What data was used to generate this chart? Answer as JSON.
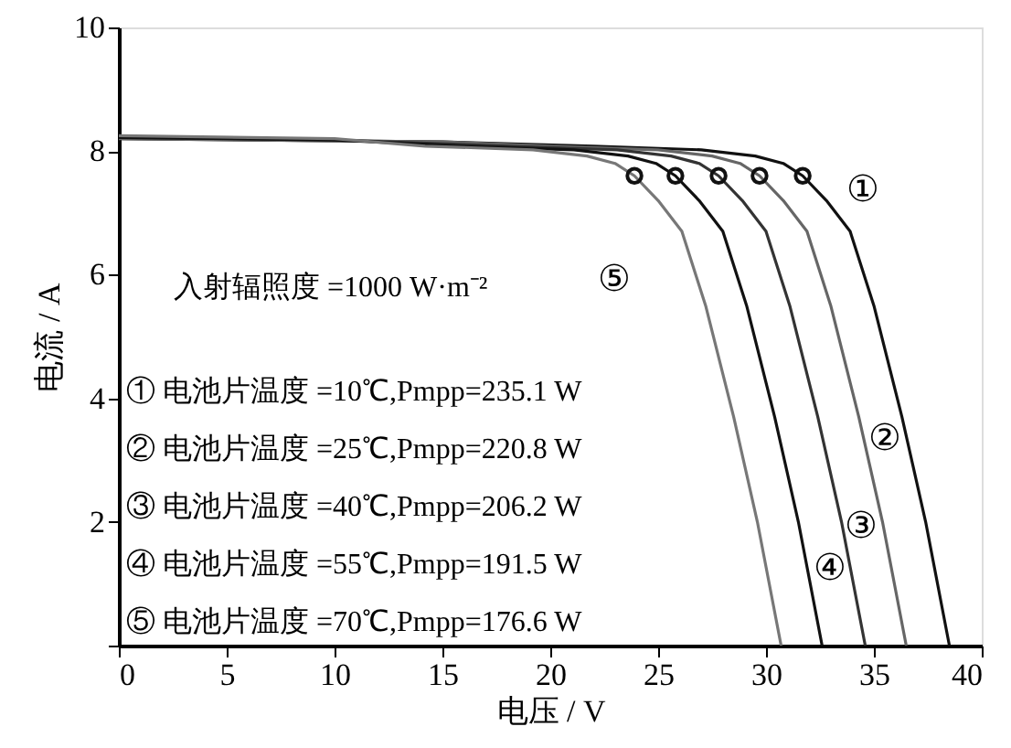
{
  "chart_data": {
    "type": "line",
    "xlabel": "电压 / V",
    "ylabel": "电流 / A",
    "xlim": [
      0,
      40
    ],
    "xticks": [
      0,
      5,
      10,
      15,
      20,
      25,
      30,
      35,
      40
    ],
    "ylim": [
      0,
      10
    ],
    "yticks": [
      {
        "value": 0,
        "label": null
      },
      2,
      4,
      6,
      8,
      10
    ],
    "grid": false,
    "series": [
      {
        "color": "#111111",
        "x": [
          0,
          15,
          22,
          27,
          29.5,
          30.8,
          31.7,
          32.8,
          33.9,
          35,
          36.3,
          37.4,
          38.5
        ],
        "values": [
          8.2,
          8.15,
          8.08,
          8.02,
          7.92,
          7.8,
          7.6,
          7.2,
          6.7,
          5.5,
          3.7,
          2.0,
          0
        ]
      },
      {
        "color": "#666666",
        "x": [
          0,
          15,
          20,
          25,
          27.5,
          28.8,
          29.7,
          30.8,
          31.9,
          33,
          34.3,
          35.4,
          36.5
        ],
        "values": [
          8.2,
          8.15,
          8.08,
          8.02,
          7.92,
          7.8,
          7.6,
          7.2,
          6.7,
          5.5,
          3.7,
          2.0,
          0
        ]
      },
      {
        "color": "#333333",
        "x": [
          0,
          10,
          18.1,
          23.1,
          25.6,
          26.9,
          27.8,
          28.9,
          30,
          31.1,
          32.4,
          33.5,
          34.6
        ],
        "values": [
          8.22,
          8.18,
          8.08,
          8.02,
          7.92,
          7.8,
          7.6,
          7.2,
          6.7,
          5.5,
          3.7,
          2.0,
          0
        ]
      },
      {
        "color": "#111111",
        "x": [
          0,
          10,
          16.1,
          21.1,
          23.6,
          24.9,
          25.8,
          26.9,
          28,
          29.1,
          30.4,
          31.5,
          32.6
        ],
        "values": [
          8.22,
          8.18,
          8.08,
          8.02,
          7.92,
          7.8,
          7.6,
          7.2,
          6.7,
          5.5,
          3.7,
          2.0,
          0
        ]
      },
      {
        "color": "#777777",
        "x": [
          0,
          10,
          14.2,
          19.2,
          21.7,
          23,
          23.9,
          25,
          26.1,
          27.2,
          28.5,
          29.6,
          30.7
        ],
        "values": [
          8.25,
          8.2,
          8.08,
          8.02,
          7.92,
          7.8,
          7.6,
          7.2,
          6.7,
          5.5,
          3.7,
          2.0,
          0
        ]
      },
      {
        "type": "scatter",
        "marker": "circle",
        "color": "#111111",
        "x": [
          23.9,
          25.8,
          27.8,
          29.7,
          31.7
        ],
        "values": [
          7.6,
          7.6,
          7.6,
          7.6,
          7.6
        ]
      }
    ],
    "annotations": [
      "入射辐照度 =1000 W·m⁻²",
      "① 电池片温度 =10℃,Pmpp=235.1 W",
      "② 电池片温度 =25℃,Pmpp=220.8 W",
      "③ 电池片温度 =40℃,Pmpp=206.2 W",
      "④ 电池片温度 =55℃,Pmpp=191.5 W",
      "⑤ 电池片温度 =70℃,Pmpp=176.6 W",
      "①",
      "②",
      "③",
      "④",
      "⑤"
    ]
  }
}
